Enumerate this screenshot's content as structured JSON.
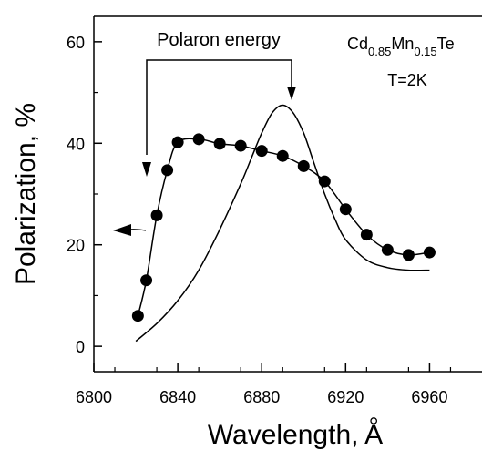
{
  "chart_data": {
    "type": "scatter",
    "xlabel": "Wavelength, Å",
    "ylabel": "Polarization, %",
    "xlim": [
      6800,
      6985
    ],
    "ylim": [
      -5,
      65
    ],
    "xticks": [
      6800,
      6840,
      6880,
      6920,
      6960
    ],
    "yticks": [
      0,
      20,
      40,
      60
    ],
    "grid": false,
    "annotations": {
      "polaron": "Polaron energy",
      "sample": {
        "base1": "Cd",
        "sub1": "0.85",
        "base2": "Mn",
        "sub2": "0.15",
        "base3": "Te"
      },
      "temperature": "T=2K"
    },
    "series": [
      {
        "kind": "markers+line",
        "x": [
          6821,
          6825,
          6830,
          6835,
          6840,
          6850,
          6860,
          6870,
          6880,
          6890,
          6900,
          6910,
          6920,
          6930,
          6940,
          6950,
          6960
        ],
        "y": [
          6,
          13,
          25.8,
          34.7,
          40.2,
          40.8,
          39.9,
          39.5,
          38.5,
          37.5,
          35.5,
          32.5,
          27,
          22,
          19,
          18,
          18.5
        ]
      },
      {
        "kind": "line",
        "x": [
          6820,
          6830,
          6840,
          6850,
          6860,
          6870,
          6875,
          6880,
          6885,
          6890,
          6895,
          6900,
          6905,
          6910,
          6915,
          6920,
          6930,
          6940,
          6950,
          6960
        ],
        "y": [
          1,
          4.5,
          9,
          15,
          23,
          32,
          37,
          42,
          46,
          47.5,
          46,
          42,
          36,
          30,
          25,
          21,
          17,
          15.5,
          15,
          15
        ]
      }
    ]
  }
}
